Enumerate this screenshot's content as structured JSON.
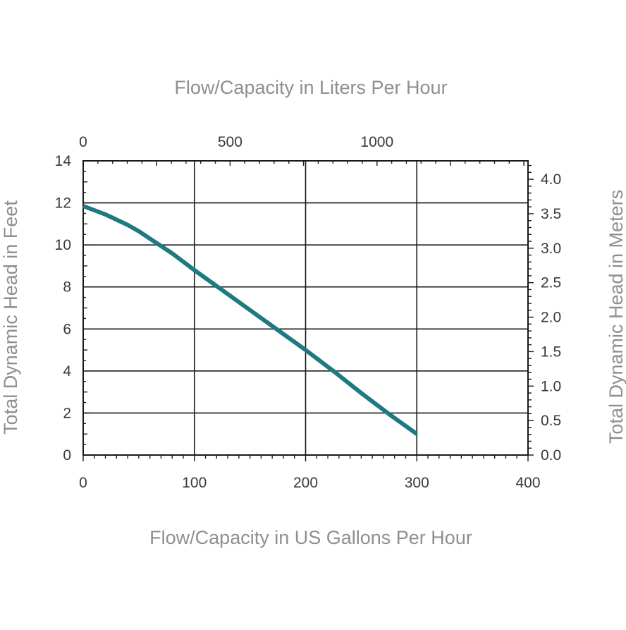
{
  "chart_data": {
    "type": "line",
    "title": "",
    "xlabel_top": "Flow/Capacity in Liters Per Hour",
    "xlabel": "Flow/Capacity in US Gallons Per Hour",
    "ylabel": "Total Dynamic Head in Feet",
    "ylabel_right": "Total Dynamic Head in Meters",
    "xlim": [
      0,
      400
    ],
    "ylim": [
      0,
      14
    ],
    "top_xlim": [
      0,
      1514
    ],
    "right_ylim": [
      0,
      4.267
    ],
    "x_ticks": [
      "0",
      "100",
      "200",
      "300",
      "400"
    ],
    "x_tick_values": [
      0,
      100,
      200,
      300,
      400
    ],
    "y_ticks": [
      "0",
      "2",
      "4",
      "6",
      "8",
      "10",
      "12",
      "14"
    ],
    "y_tick_values": [
      0,
      2,
      4,
      6,
      8,
      10,
      12,
      14
    ],
    "top_ticks": [
      "0",
      "500",
      "1000"
    ],
    "top_tick_values": [
      0,
      500,
      1000
    ],
    "right_ticks": [
      "0.0",
      "0.5",
      "1.0",
      "1.5",
      "2.0",
      "2.5",
      "3.0",
      "3.5",
      "4.0"
    ],
    "right_tick_values": [
      0,
      0.5,
      1.0,
      1.5,
      2.0,
      2.5,
      3.0,
      3.5,
      4.0
    ],
    "grid": true,
    "line_color": "#1e7a80",
    "series": [
      {
        "x": [
          0,
          10,
          20,
          30,
          40,
          50,
          60,
          70,
          80,
          90,
          100,
          125,
          150,
          175,
          200,
          225,
          250,
          275,
          300
        ],
        "y": [
          11.85,
          11.65,
          11.45,
          11.2,
          10.95,
          10.65,
          10.3,
          9.95,
          9.6,
          9.2,
          8.8,
          7.85,
          6.9,
          5.95,
          5.0,
          4.0,
          2.95,
          1.95,
          1.0
        ]
      }
    ]
  }
}
